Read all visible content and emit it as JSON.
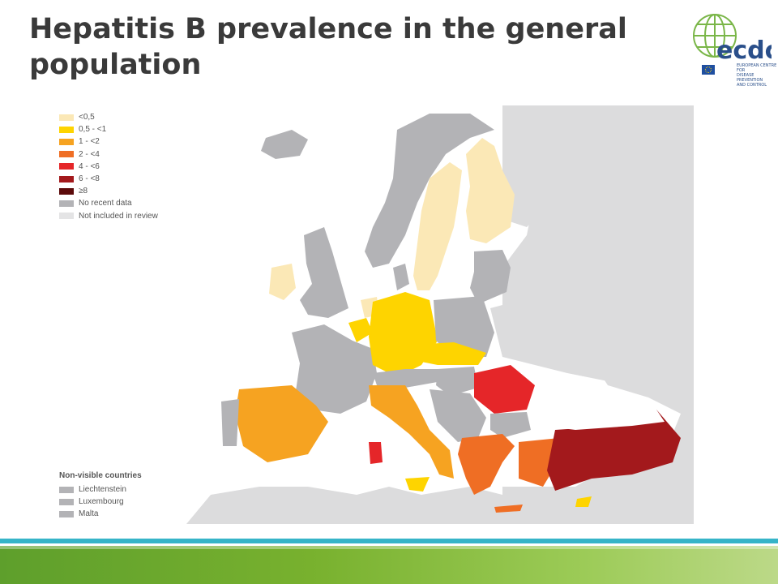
{
  "title": "Hepatitis B prevalence in the general population",
  "logo": {
    "wordmark": "ecdc",
    "subtitle": [
      "EUROPEAN CENTRE FOR",
      "DISEASE PREVENTION",
      "AND CONTROL"
    ]
  },
  "legend": {
    "items": [
      {
        "label": "<0,5",
        "color": "#fbe8b6"
      },
      {
        "label": "0,5 - <1",
        "color": "#fed400"
      },
      {
        "label": "1 - <2",
        "color": "#f6a321"
      },
      {
        "label": "2 - <4",
        "color": "#ef6e24"
      },
      {
        "label": "4 - <6",
        "color": "#e52629"
      },
      {
        "label": "6 - <8",
        "color": "#a3191c"
      },
      {
        "label": "≥8",
        "color": "#5c0a0a"
      },
      {
        "label": "No recent data",
        "color": "#b3b3b6"
      },
      {
        "label": "Not included in review",
        "color": "#e4e4e5"
      }
    ]
  },
  "non_visible": {
    "title": "Non-visible countries",
    "items": [
      {
        "label": "Liechtenstein",
        "color": "#b3b3b6"
      },
      {
        "label": "Luxembourg",
        "color": "#b3b3b6"
      },
      {
        "label": "Malta",
        "color": "#b3b3b6"
      }
    ]
  },
  "colors": {
    "title": "#3a3a3a",
    "sea": "#ffffff",
    "not_included": "#dcdcdd",
    "no_data": "#b3b3b6",
    "accent_bar": "#36b4c8",
    "footer_green": "#78b12e"
  }
}
